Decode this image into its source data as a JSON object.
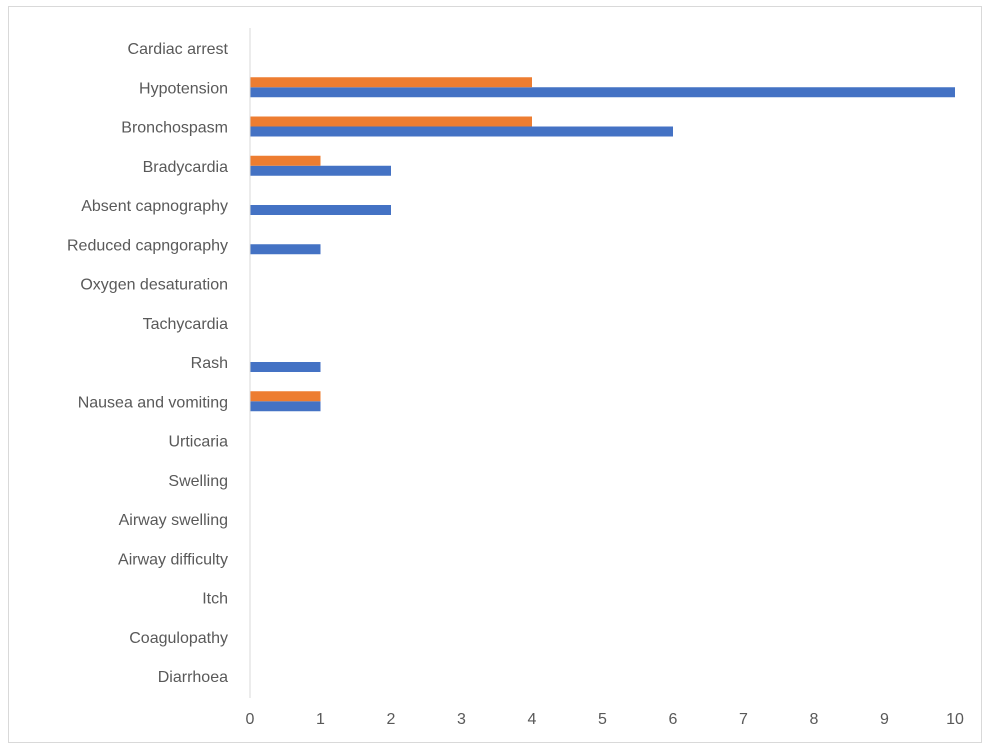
{
  "chart_data": {
    "type": "bar",
    "orientation": "horizontal",
    "categories": [
      "Cardiac arrest",
      "Hypotension",
      "Bronchospasm",
      "Bradycardia",
      "Absent capnography",
      "Reduced capngoraphy",
      "Oxygen desaturation",
      "Tachycardia",
      "Rash",
      "Nausea and vomiting",
      "Urticaria",
      "Swelling ",
      "Airway swelling",
      "Airway difficulty",
      "Itch",
      "Coagulopathy",
      "Diarrhoea"
    ],
    "series": [
      {
        "color": "#4472C4",
        "values": [
          0,
          10,
          6,
          2,
          2,
          1,
          0,
          0,
          1,
          1,
          0,
          0,
          0,
          0,
          0,
          0,
          0
        ]
      },
      {
        "color": "#ED7D31",
        "values": [
          0,
          4,
          4,
          1,
          0,
          0,
          0,
          0,
          0,
          1,
          0,
          0,
          0,
          0,
          0,
          0,
          0
        ]
      }
    ],
    "xlim": [
      0,
      10
    ],
    "x_ticks": [
      "0",
      "1",
      "2",
      "3",
      "4",
      "5",
      "6",
      "7",
      "8",
      "9",
      "10"
    ],
    "grid": false,
    "legend": "none",
    "title": "",
    "xlabel": "",
    "ylabel": ""
  }
}
